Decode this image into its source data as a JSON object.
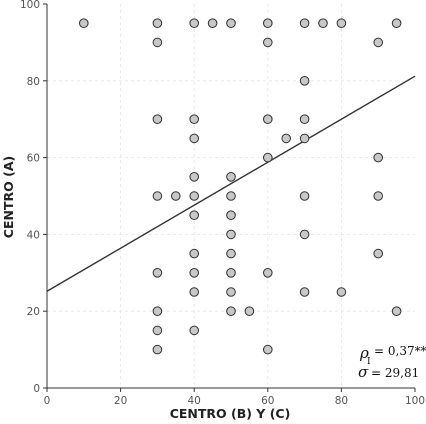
{
  "chart_data": {
    "type": "scatter",
    "xlabel": "CENTRO (B) Y (C)",
    "ylabel": "CENTRO (A)",
    "xlim": [
      0,
      100
    ],
    "ylim": [
      0,
      100
    ],
    "x_ticks": [
      "0",
      "20",
      "40",
      "60",
      "80",
      "100"
    ],
    "y_ticks": [
      "0",
      "20",
      "40",
      "60",
      "80",
      "100"
    ],
    "grid": true,
    "points": [
      [
        10,
        95
      ],
      [
        30,
        95
      ],
      [
        40,
        95
      ],
      [
        45,
        95
      ],
      [
        50,
        95
      ],
      [
        60,
        95
      ],
      [
        70,
        95
      ],
      [
        75,
        95
      ],
      [
        80,
        95
      ],
      [
        95,
        95
      ],
      [
        30,
        90
      ],
      [
        60,
        90
      ],
      [
        90,
        90
      ],
      [
        70,
        80
      ],
      [
        30,
        70
      ],
      [
        40,
        70
      ],
      [
        60,
        70
      ],
      [
        70,
        70
      ],
      [
        40,
        65
      ],
      [
        65,
        65
      ],
      [
        70,
        65
      ],
      [
        60,
        60
      ],
      [
        90,
        60
      ],
      [
        40,
        55
      ],
      [
        50,
        55
      ],
      [
        30,
        50
      ],
      [
        35,
        50
      ],
      [
        40,
        50
      ],
      [
        50,
        50
      ],
      [
        70,
        50
      ],
      [
        90,
        50
      ],
      [
        40,
        45
      ],
      [
        50,
        45
      ],
      [
        50,
        40
      ],
      [
        70,
        40
      ],
      [
        40,
        35
      ],
      [
        50,
        35
      ],
      [
        90,
        35
      ],
      [
        30,
        30
      ],
      [
        40,
        30
      ],
      [
        50,
        30
      ],
      [
        60,
        30
      ],
      [
        40,
        25
      ],
      [
        50,
        25
      ],
      [
        70,
        25
      ],
      [
        80,
        25
      ],
      [
        30,
        20
      ],
      [
        50,
        20
      ],
      [
        55,
        20
      ],
      [
        95,
        20
      ],
      [
        30,
        15
      ],
      [
        40,
        15
      ],
      [
        30,
        10
      ],
      [
        60,
        10
      ]
    ],
    "regression_line": {
      "intercept": 25.2,
      "slope": 0.56
    },
    "marker_color": "#c8c8c8",
    "marker_edge_color": "#333333",
    "line_color": "#333333",
    "annotations": {
      "rho_symbol": "ρ",
      "rho_subscript": "I",
      "rho_value": "= 0,37**",
      "sigma_symbol": "σ",
      "sigma_value": "= 29,81"
    }
  }
}
